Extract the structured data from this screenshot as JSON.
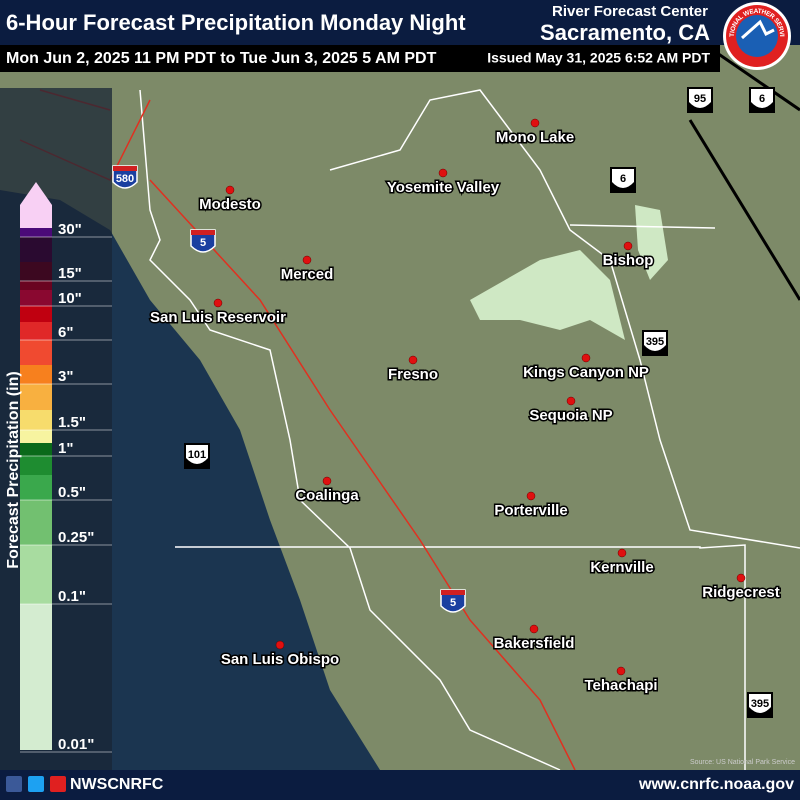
{
  "header": {
    "title": "6-Hour Forecast Precipitation Monday Night",
    "valid_period": "Mon Jun 2, 2025 11 PM PDT to Tue Jun 3, 2025 5 AM PDT",
    "issued": "Issued May 31, 2025 6:52 AM PDT",
    "office": "River Forecast Center",
    "location": "Sacramento, CA",
    "logo_text": "NATIONAL WEATHER SERVICE"
  },
  "legend": {
    "title": "Forecast Precipitation (in)",
    "labels": [
      "30\"",
      "15\"",
      "10\"",
      "6\"",
      "3\"",
      "1.5\"",
      "1\"",
      "0.5\"",
      "0.25\"",
      "0.1\"",
      "0.01\""
    ]
  },
  "map": {
    "places": [
      "Modesto",
      "Merced",
      "San Luis Reservoir",
      "Yosemite Valley",
      "Mono Lake",
      "Bishop",
      "Kings Canyon NP",
      "Fresno",
      "Sequoia NP",
      "Coalinga",
      "Porterville",
      "Kernville",
      "Ridgecrest",
      "Bakersfield",
      "Tehachapi",
      "San Luis Obispo"
    ],
    "highways": [
      "580",
      "5",
      "5",
      "101",
      "395",
      "395",
      "95",
      "6",
      "6"
    ],
    "source": "Source: US National Park Service"
  },
  "footer": {
    "social": "NWSCNRFC",
    "url": "www.cnrfc.noaa.gov"
  }
}
